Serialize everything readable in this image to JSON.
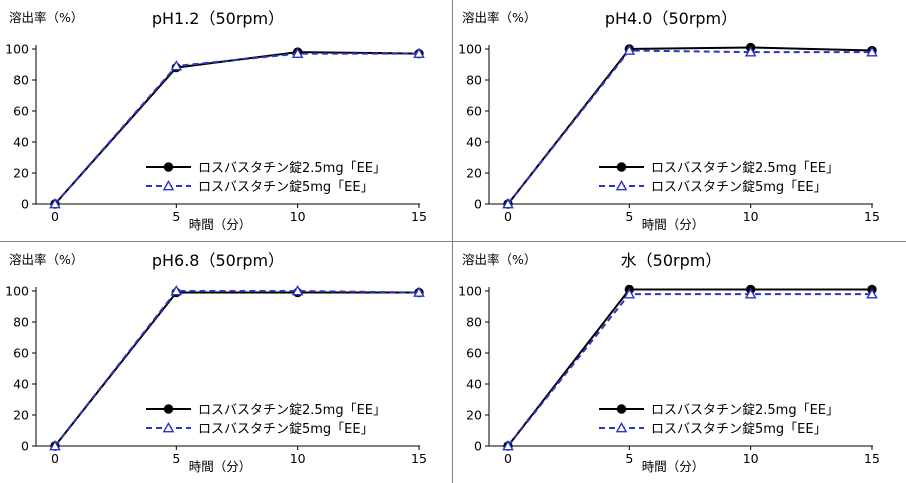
{
  "colors": {
    "series_1": "#000000",
    "series_2": "#2b35c4",
    "frame": "#808080"
  },
  "chart_data": [
    {
      "type": "line",
      "title": "pH1.2（50rpm）",
      "ylabel": "溶出率（%）",
      "xlabel": "時間（分）",
      "x": [
        0,
        5,
        10,
        15
      ],
      "x_ticks": [
        "0",
        "5",
        "10",
        "15"
      ],
      "y_ticks": [
        "0",
        "20",
        "40",
        "60",
        "80",
        "100"
      ],
      "xlim": [
        0,
        15
      ],
      "ylim": [
        0,
        100
      ],
      "grid": false,
      "legend_position": "bottom-right",
      "series": [
        {
          "name": "ロスバスタチン錠2.5mg「EE」",
          "values": [
            0,
            88,
            98,
            97
          ],
          "marker": "filled-circle",
          "line": "solid",
          "color": "#000000"
        },
        {
          "name": "ロスバスタチン錠5mg「EE」",
          "values": [
            0,
            89,
            97,
            97
          ],
          "marker": "open-triangle",
          "line": "dashed",
          "color": "#2b35c4"
        }
      ]
    },
    {
      "type": "line",
      "title": "pH4.0（50rpm）",
      "ylabel": "溶出率（%）",
      "xlabel": "時間（分）",
      "x": [
        0,
        5,
        10,
        15
      ],
      "x_ticks": [
        "0",
        "5",
        "10",
        "15"
      ],
      "y_ticks": [
        "0",
        "20",
        "40",
        "60",
        "80",
        "100"
      ],
      "xlim": [
        0,
        15
      ],
      "ylim": [
        0,
        100
      ],
      "grid": false,
      "legend_position": "bottom-right",
      "series": [
        {
          "name": "ロスバスタチン錠2.5mg「EE」",
          "values": [
            0,
            100,
            101,
            99
          ],
          "marker": "filled-circle",
          "line": "solid",
          "color": "#000000"
        },
        {
          "name": "ロスバスタチン錠5mg「EE」",
          "values": [
            0,
            99,
            98,
            98
          ],
          "marker": "open-triangle",
          "line": "dashed",
          "color": "#2b35c4"
        }
      ]
    },
    {
      "type": "line",
      "title": "pH6.8（50rpm）",
      "ylabel": "溶出率（%）",
      "xlabel": "時間（分）",
      "x": [
        0,
        5,
        10,
        15
      ],
      "x_ticks": [
        "0",
        "5",
        "10",
        "15"
      ],
      "y_ticks": [
        "0",
        "20",
        "40",
        "60",
        "80",
        "100"
      ],
      "xlim": [
        0,
        15
      ],
      "ylim": [
        0,
        100
      ],
      "grid": false,
      "legend_position": "bottom-right",
      "series": [
        {
          "name": "ロスバスタチン錠2.5mg「EE」",
          "values": [
            0,
            99,
            99,
            99
          ],
          "marker": "filled-circle",
          "line": "solid",
          "color": "#000000"
        },
        {
          "name": "ロスバスタチン錠5mg「EE」",
          "values": [
            0,
            100,
            100,
            99
          ],
          "marker": "open-triangle",
          "line": "dashed",
          "color": "#2b35c4"
        }
      ]
    },
    {
      "type": "line",
      "title": "水（50rpm）",
      "ylabel": "溶出率（%）",
      "xlabel": "時間（分）",
      "x": [
        0,
        5,
        10,
        15
      ],
      "x_ticks": [
        "0",
        "5",
        "10",
        "15"
      ],
      "y_ticks": [
        "0",
        "20",
        "40",
        "60",
        "80",
        "100"
      ],
      "xlim": [
        0,
        15
      ],
      "ylim": [
        0,
        100
      ],
      "grid": false,
      "legend_position": "bottom-right",
      "series": [
        {
          "name": "ロスバスタチン錠2.5mg「EE」",
          "values": [
            0,
            101,
            101,
            101
          ],
          "marker": "filled-circle",
          "line": "solid",
          "color": "#000000"
        },
        {
          "name": "ロスバスタチン錠5mg「EE」",
          "values": [
            0,
            98,
            98,
            98
          ],
          "marker": "open-triangle",
          "line": "dashed",
          "color": "#2b35c4"
        }
      ]
    }
  ]
}
